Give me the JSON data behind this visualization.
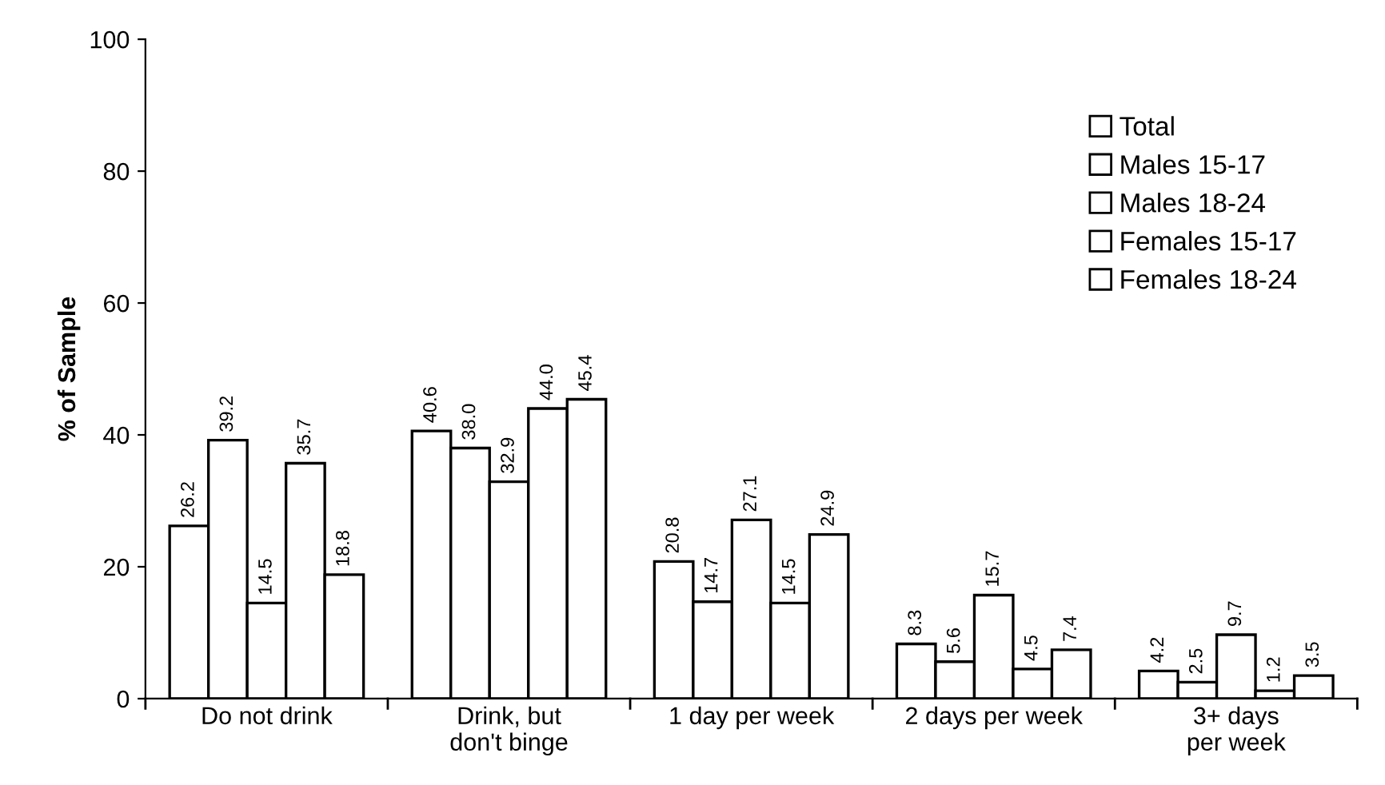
{
  "chart_data": {
    "type": "bar",
    "ylabel": "% of Sample",
    "categories": [
      "Do not drink",
      "Drink, but\ndon't binge",
      "1 day per week",
      "2 days per week",
      "3+ days\nper week"
    ],
    "series": [
      {
        "name": "Total",
        "color": "#ffffff",
        "values": [
          26.2,
          40.6,
          20.8,
          8.3,
          4.2
        ],
        "value_labels": [
          "26.2",
          "40.6",
          "20.8",
          "8.3",
          "4.2"
        ]
      },
      {
        "name": "Males 15-17",
        "color": "#ffffff",
        "values": [
          39.2,
          38.0,
          14.7,
          5.6,
          2.5
        ],
        "value_labels": [
          "39.2",
          "38.0",
          "14.7",
          "5.6",
          "2.5"
        ]
      },
      {
        "name": "Males 18-24",
        "color": "#ffffff",
        "values": [
          14.5,
          32.9,
          27.1,
          15.7,
          9.7
        ],
        "value_labels": [
          "14.5",
          "32.9",
          "27.1",
          "15.7",
          "9.7"
        ]
      },
      {
        "name": "Females 15-17",
        "color": "#ffffff",
        "values": [
          35.7,
          44.0,
          14.5,
          4.5,
          1.2
        ],
        "value_labels": [
          "35.7",
          "44.0",
          "14.5",
          "4.5",
          "1.2"
        ]
      },
      {
        "name": "Females 18-24",
        "color": "#ffffff",
        "values": [
          18.8,
          45.4,
          24.9,
          7.4,
          3.5
        ],
        "value_labels": [
          "18.8",
          "45.4",
          "24.9",
          "7.4",
          "3.5"
        ]
      }
    ],
    "ylim": [
      0,
      100
    ],
    "yticks": [
      0,
      20,
      40,
      60,
      80,
      100
    ],
    "grid": false,
    "legend": "top right"
  }
}
